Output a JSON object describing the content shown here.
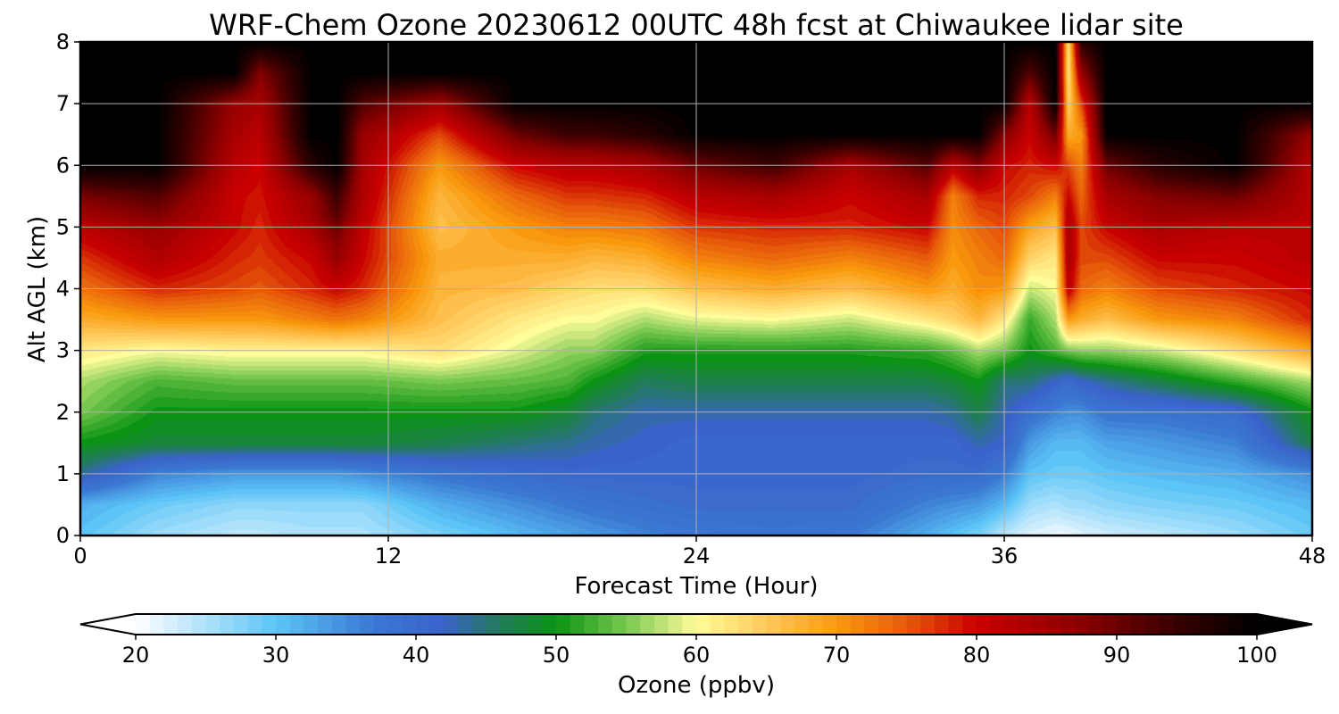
{
  "chart_data": {
    "type": "heatmap",
    "title": "WRF-Chem Ozone  20230612 00UTC 48h fcst at Chiwaukee lidar site",
    "xlabel": "Forecast Time (Hour)",
    "ylabel": "Alt AGL (km)",
    "xlim": [
      0,
      48
    ],
    "ylim": [
      0,
      8
    ],
    "xticks": [
      "0",
      "12",
      "24",
      "36",
      "48"
    ],
    "yticks": [
      "0",
      "1",
      "2",
      "3",
      "4",
      "5",
      "6",
      "7",
      "8"
    ],
    "grid": true,
    "colorbar": {
      "label": "Ozone  (ppbv)",
      "ticks": [
        "20",
        "30",
        "40",
        "50",
        "60",
        "70",
        "80",
        "90",
        "100"
      ],
      "vmin": 20,
      "vmax": 100,
      "extend": "both",
      "stops": [
        {
          "value": 20,
          "color": "#ffffff"
        },
        {
          "value": 30,
          "color": "#5cc4f6"
        },
        {
          "value": 37,
          "color": "#3a78d2"
        },
        {
          "value": 42,
          "color": "#3a63c9"
        },
        {
          "value": 46,
          "color": "#227b5a"
        },
        {
          "value": 50,
          "color": "#0b9313"
        },
        {
          "value": 55,
          "color": "#79c84f"
        },
        {
          "value": 60,
          "color": "#fffc9a"
        },
        {
          "value": 65,
          "color": "#ffc95c"
        },
        {
          "value": 70,
          "color": "#f99a0e"
        },
        {
          "value": 75,
          "color": "#e65a0a"
        },
        {
          "value": 80,
          "color": "#c80000"
        },
        {
          "value": 87,
          "color": "#8f0000"
        },
        {
          "value": 94,
          "color": "#3a0000"
        },
        {
          "value": 100,
          "color": "#000000"
        }
      ]
    },
    "profile_heights_km": [
      0,
      0.5,
      1,
      1.5,
      2,
      2.5,
      3,
      3.5,
      4,
      4.5,
      5,
      5.5,
      6,
      6.5,
      7,
      7.5,
      8
    ],
    "profiles": [
      {
        "hour": 0,
        "ozone_ppbv": [
          30,
          32,
          44,
          50,
          55,
          57,
          62,
          68,
          73,
          77,
          82,
          89,
          100,
          100,
          100,
          100,
          100
        ]
      },
      {
        "hour": 3,
        "ozone_ppbv": [
          26,
          29,
          36,
          48,
          50,
          53,
          60,
          70,
          78,
          83,
          86,
          92,
          100,
          100,
          100,
          100,
          100
        ]
      },
      {
        "hour": 6,
        "ozone_ppbv": [
          24,
          27,
          34,
          48,
          50,
          54,
          61,
          70,
          76,
          78,
          80,
          80,
          82,
          84,
          86,
          100,
          100
        ]
      },
      {
        "hour": 7,
        "ozone_ppbv": [
          24,
          27,
          34,
          48,
          50,
          54,
          61,
          70,
          75,
          77,
          78,
          79,
          80,
          82,
          84,
          88,
          100
        ]
      },
      {
        "hour": 9,
        "ozone_ppbv": [
          25,
          27,
          34,
          48,
          50,
          54,
          61,
          72,
          78,
          80,
          84,
          86,
          96,
          100,
          100,
          100,
          100
        ]
      },
      {
        "hour": 10,
        "ozone_ppbv": [
          25,
          27,
          34,
          48,
          50,
          54,
          61,
          73,
          80,
          86,
          90,
          94,
          100,
          100,
          100,
          100,
          100
        ]
      },
      {
        "hour": 11,
        "ozone_ppbv": [
          25,
          27,
          35,
          48,
          50,
          54,
          61,
          72,
          78,
          80,
          81,
          83,
          84,
          86,
          92,
          100,
          100
        ]
      },
      {
        "hour": 14,
        "ozone_ppbv": [
          28,
          32,
          38,
          47,
          50,
          55,
          63,
          66,
          67,
          68,
          66,
          67,
          70,
          76,
          85,
          100,
          100
        ]
      },
      {
        "hour": 17,
        "ozone_ppbv": [
          31,
          35,
          40,
          45,
          50,
          54,
          59,
          62,
          66,
          68,
          70,
          74,
          80,
          90,
          100,
          100,
          100
        ]
      },
      {
        "hour": 19,
        "ozone_ppbv": [
          33,
          37,
          41,
          44,
          48,
          53,
          56,
          60,
          64,
          68,
          72,
          77,
          82,
          94,
          100,
          100,
          100
        ]
      },
      {
        "hour": 20,
        "ozone_ppbv": [
          34,
          38,
          41,
          43,
          45,
          50,
          56,
          60,
          63,
          67,
          72,
          77,
          82,
          94,
          100,
          100,
          100
        ]
      },
      {
        "hour": 22,
        "ozone_ppbv": [
          36,
          39,
          41,
          42,
          43,
          46,
          51,
          57,
          63,
          68,
          73,
          78,
          84,
          96,
          100,
          100,
          100
        ]
      },
      {
        "hour": 24,
        "ozone_ppbv": [
          37,
          40,
          41,
          41,
          43,
          47,
          51,
          59,
          66,
          72,
          77,
          82,
          90,
          100,
          100,
          100,
          100
        ]
      },
      {
        "hour": 27,
        "ozone_ppbv": [
          38,
          40,
          41,
          41,
          43,
          47,
          51,
          60,
          68,
          74,
          78,
          84,
          94,
          100,
          100,
          100,
          100
        ]
      },
      {
        "hour": 30,
        "ozone_ppbv": [
          37,
          40,
          41,
          41,
          43,
          47,
          51,
          58,
          66,
          72,
          78,
          80,
          84,
          100,
          100,
          100,
          100
        ]
      },
      {
        "hour": 33,
        "ozone_ppbv": [
          32,
          36,
          40,
          41,
          43,
          47,
          52,
          62,
          70,
          75,
          80,
          84,
          92,
          100,
          100,
          100,
          100
        ]
      },
      {
        "hour": 34,
        "ozone_ppbv": [
          30,
          35,
          40,
          41,
          44,
          48,
          54,
          64,
          68,
          70,
          71,
          72,
          82,
          100,
          100,
          100,
          100
        ]
      },
      {
        "hour": 35,
        "ozone_ppbv": [
          28,
          34,
          40,
          43,
          47,
          50,
          57,
          67,
          71,
          72,
          74,
          78,
          88,
          100,
          100,
          100,
          100
        ]
      },
      {
        "hour": 36,
        "ozone_ppbv": [
          24,
          31,
          37,
          42,
          43,
          45,
          55,
          62,
          70,
          74,
          76,
          78,
          80,
          88,
          100,
          100,
          100
        ]
      },
      {
        "hour": 37,
        "ozone_ppbv": [
          22,
          26,
          30,
          34,
          39,
          45,
          50,
          52,
          58,
          64,
          69,
          76,
          78,
          80,
          82,
          92,
          100
        ]
      },
      {
        "hour": 38,
        "ozone_ppbv": [
          21,
          25,
          29,
          31,
          36,
          42,
          53,
          57,
          60,
          62,
          66,
          72,
          80,
          90,
          100,
          100,
          100
        ]
      },
      {
        "hour": 38.5,
        "ozone_ppbv": [
          21,
          26,
          29,
          31,
          35,
          40,
          55,
          70,
          82,
          84,
          84,
          80,
          76,
          68,
          64,
          62,
          62
        ]
      },
      {
        "hour": 39,
        "ozone_ppbv": [
          22,
          26,
          29,
          31,
          35,
          42,
          56,
          68,
          74,
          76,
          76,
          74,
          72,
          70,
          76,
          86,
          96
        ]
      },
      {
        "hour": 40,
        "ozone_ppbv": [
          23,
          27,
          30,
          33,
          38,
          44,
          56,
          66,
          72,
          76,
          80,
          84,
          90,
          100,
          100,
          100,
          100
        ]
      },
      {
        "hour": 42,
        "ozone_ppbv": [
          24,
          28,
          31,
          34,
          38,
          47,
          58,
          70,
          76,
          80,
          84,
          88,
          96,
          100,
          100,
          100,
          100
        ]
      },
      {
        "hour": 45,
        "ozone_ppbv": [
          26,
          29,
          32,
          36,
          40,
          52,
          63,
          72,
          78,
          80,
          82,
          90,
          100,
          100,
          100,
          100,
          100
        ]
      },
      {
        "hour": 48,
        "ozone_ppbv": [
          29,
          31,
          35,
          47,
          50,
          57,
          69,
          78,
          80,
          82,
          82,
          82,
          82,
          86,
          100,
          100,
          100
        ]
      }
    ]
  }
}
